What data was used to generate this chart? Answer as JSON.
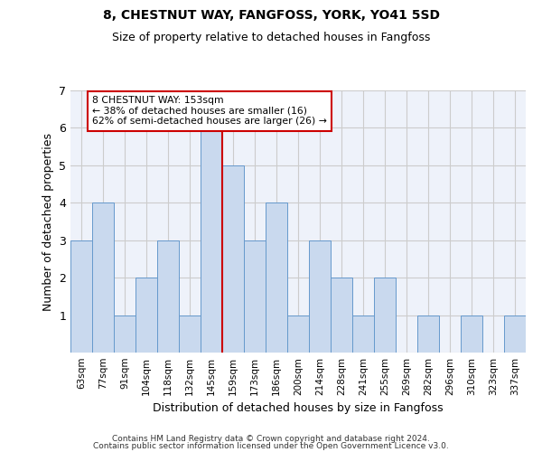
{
  "title1": "8, CHESTNUT WAY, FANGFOSS, YORK, YO41 5SD",
  "title2": "Size of property relative to detached houses in Fangfoss",
  "xlabel": "Distribution of detached houses by size in Fangfoss",
  "ylabel": "Number of detached properties",
  "categories": [
    "63sqm",
    "77sqm",
    "91sqm",
    "104sqm",
    "118sqm",
    "132sqm",
    "145sqm",
    "159sqm",
    "173sqm",
    "186sqm",
    "200sqm",
    "214sqm",
    "228sqm",
    "241sqm",
    "255sqm",
    "269sqm",
    "282sqm",
    "296sqm",
    "310sqm",
    "323sqm",
    "337sqm"
  ],
  "values": [
    3,
    4,
    1,
    2,
    3,
    1,
    6,
    5,
    3,
    4,
    1,
    3,
    2,
    1,
    2,
    0,
    1,
    0,
    1,
    0,
    1
  ],
  "bar_color": "#c9d9ee",
  "bar_edge_color": "#6699cc",
  "ref_line_index": 6,
  "annotation_text_line1": "8 CHESTNUT WAY: 153sqm",
  "annotation_text_line2": "← 38% of detached houses are smaller (16)",
  "annotation_text_line3": "62% of semi-detached houses are larger (26) →",
  "ylim": [
    0,
    7
  ],
  "yticks": [
    0,
    1,
    2,
    3,
    4,
    5,
    6,
    7
  ],
  "grid_color": "#cccccc",
  "background_color": "#eef2fa",
  "footer_line1": "Contains HM Land Registry data © Crown copyright and database right 2024.",
  "footer_line2": "Contains public sector information licensed under the Open Government Licence v3.0.",
  "ref_line_color": "#cc0000",
  "annotation_box_color": "#cc0000",
  "title1_fontsize": 10,
  "title2_fontsize": 9,
  "ylabel_fontsize": 9,
  "xlabel_fontsize": 9
}
